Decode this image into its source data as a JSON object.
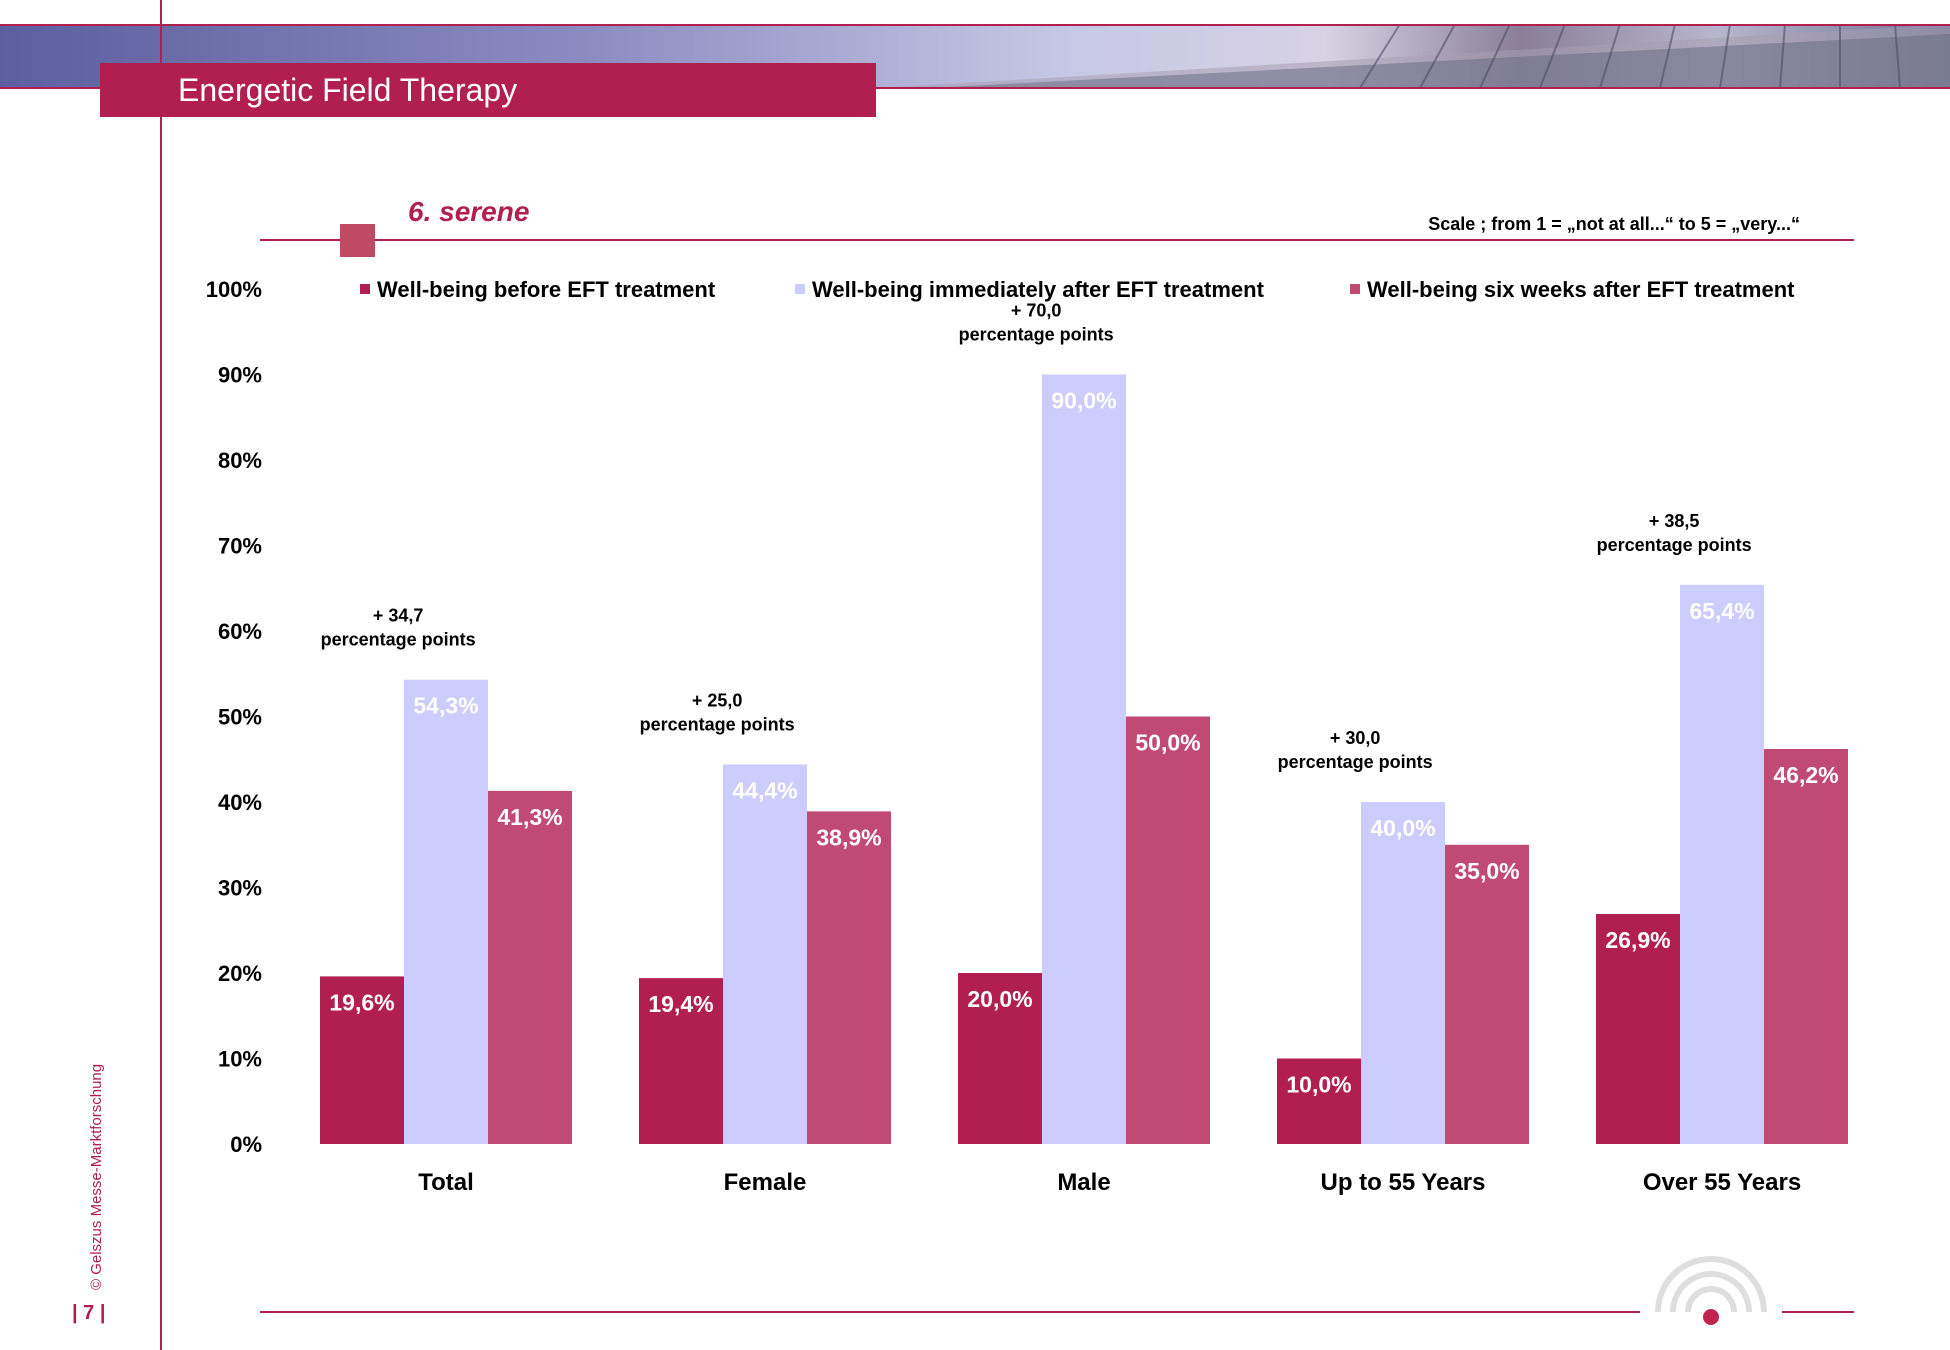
{
  "header": {
    "title": "Energetic Field Therapy"
  },
  "section": {
    "title": "6. serene",
    "scale_note": "Scale ; from 1 = „not at all...“  to 5 = „very...“"
  },
  "footer": {
    "page_number": "| 7 |",
    "copyright": "© Gelszus Messe-Marktforschung"
  },
  "colors": {
    "brand": "#b11e50",
    "before": "#b11e50",
    "immediately": "#ccccff",
    "six_weeks": "#c04a74"
  },
  "chart_data": {
    "type": "bar",
    "categories": [
      "Total",
      "Female",
      "Male",
      "Up to 55 Years",
      "Over 55 Years"
    ],
    "series": [
      {
        "name": "Well-being before EFT treatment",
        "values": [
          19.6,
          19.4,
          20.0,
          10.0,
          26.9
        ],
        "labels": [
          "19,6%",
          "19,4%",
          "20,0%",
          "10,0%",
          "26,9%"
        ]
      },
      {
        "name": "Well-being immediately after EFT treatment",
        "values": [
          54.3,
          44.4,
          90.0,
          40.0,
          65.4
        ],
        "labels": [
          "54,3%",
          "44,4%",
          "90,0%",
          "40,0%",
          "65,4%"
        ]
      },
      {
        "name": "Well-being six weeks after EFT treatment",
        "values": [
          41.3,
          38.9,
          50.0,
          35.0,
          46.2
        ],
        "labels": [
          "41,3%",
          "38,9%",
          "50,0%",
          "35,0%",
          "46,2%"
        ]
      }
    ],
    "annotations": [
      {
        "value": "+ 34,7",
        "text": "percentage points"
      },
      {
        "value": "+ 25,0",
        "text": "percentage points"
      },
      {
        "value": "+ 70,0",
        "text": "percentage points"
      },
      {
        "value": "+ 30,0",
        "text": "percentage points"
      },
      {
        "value": "+ 38,5",
        "text": "percentage points"
      }
    ],
    "y_ticks": [
      "0%",
      "10%",
      "20%",
      "30%",
      "40%",
      "50%",
      "60%",
      "70%",
      "80%",
      "90%",
      "100%"
    ],
    "ylim": [
      0,
      100
    ],
    "grid": false,
    "legend_position": "top"
  }
}
